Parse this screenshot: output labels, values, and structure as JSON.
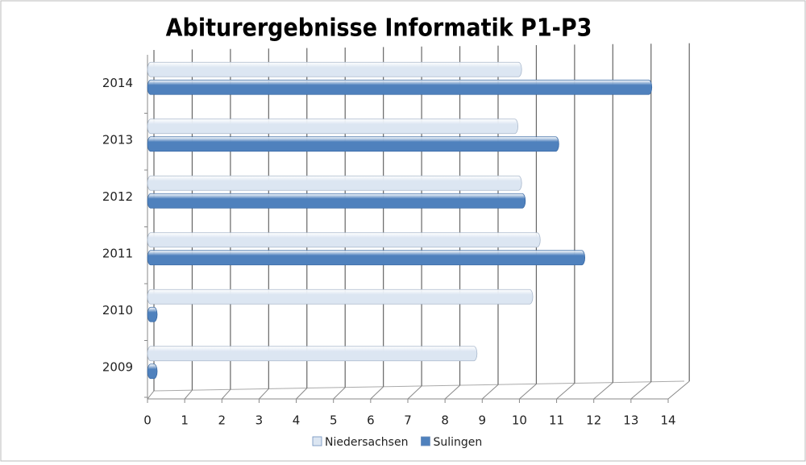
{
  "chart_data": {
    "type": "bar",
    "orientation": "horizontal",
    "title": "Abiturergebnisse Informatik P1-P3",
    "categories": [
      "2009",
      "2010",
      "2011",
      "2012",
      "2013",
      "2014"
    ],
    "series": [
      {
        "name": "Niedersachsen",
        "color": "#dce6f2",
        "values": [
          8.6,
          10.1,
          10.3,
          9.8,
          9.7,
          9.8
        ]
      },
      {
        "name": "Sulingen",
        "color": "#4f81bd",
        "values": [
          0,
          0,
          11.5,
          9.9,
          10.8,
          13.3
        ]
      }
    ],
    "xlim": [
      0,
      14
    ],
    "xticks": [
      0,
      1,
      2,
      3,
      4,
      5,
      6,
      7,
      8,
      9,
      10,
      11,
      12,
      13,
      14
    ],
    "grid": true,
    "legend": "bottom"
  }
}
